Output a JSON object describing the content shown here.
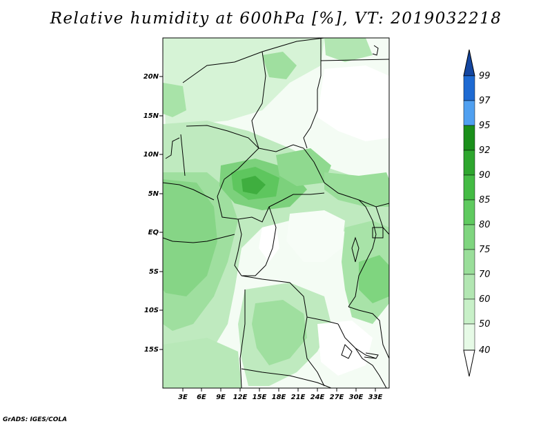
{
  "title": "Relative humidity at 600hPa [%], VT: 2019032218",
  "credit": "GrADS: IGES/COLA",
  "map": {
    "lat_labels": [
      "20N",
      "15N",
      "10N",
      "5N",
      "EQ",
      "5S",
      "10S",
      "15S"
    ],
    "lon_labels": [
      "3E",
      "6E",
      "9E",
      "12E",
      "15E",
      "18E",
      "21E",
      "24E",
      "27E",
      "30E",
      "33E"
    ]
  },
  "colorbar": {
    "labels": [
      "40",
      "50",
      "60",
      "70",
      "75",
      "80",
      "85",
      "90",
      "92",
      "95",
      "97",
      "99"
    ],
    "colors": [
      "#ffffff",
      "#e6fae6",
      "#c8f0c8",
      "#b2e6b2",
      "#9ade9a",
      "#7fd57f",
      "#5fca5f",
      "#44bb44",
      "#2ea62e",
      "#1a8f1a",
      "#50a0f0",
      "#1e6ad2",
      "#1446a0"
    ]
  }
}
